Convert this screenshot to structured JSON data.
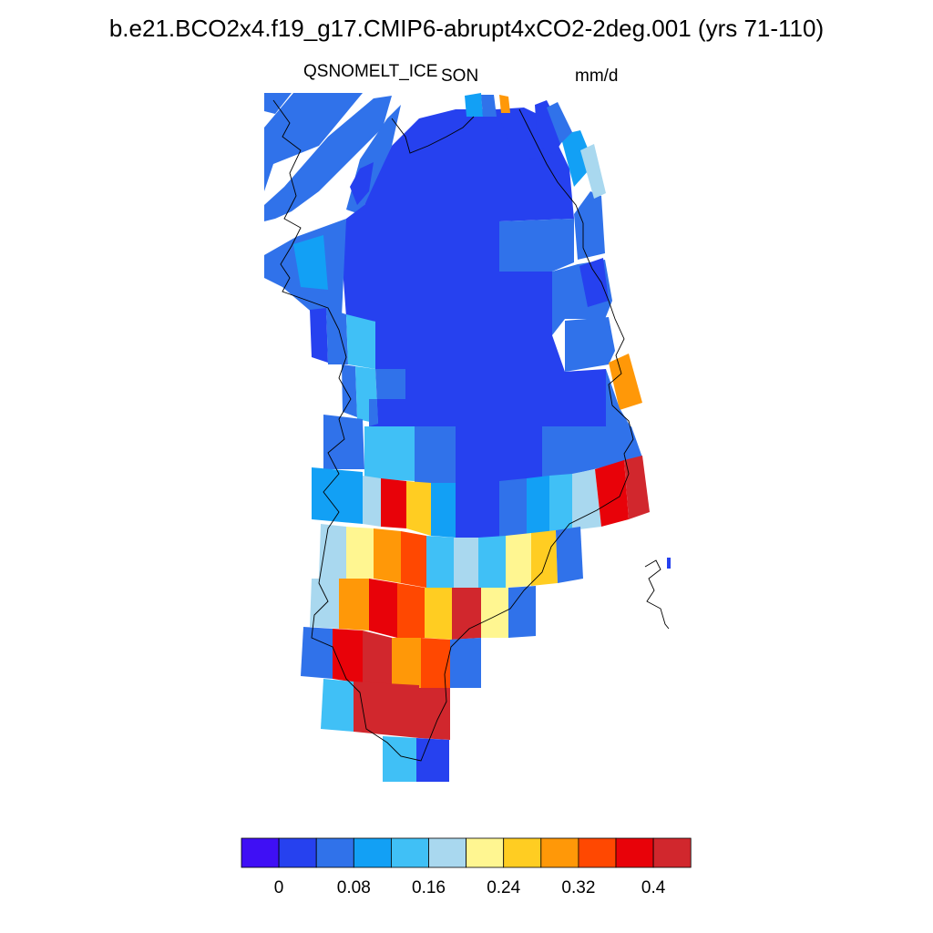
{
  "title": "b.e21.BCO2x4.f19_g17.CMIP6-abrupt4xCO2-2deg.001 (yrs 71-110)",
  "variable": "QSNOMELT_ICE",
  "season": "SON",
  "units": "mm/d",
  "colorbar": {
    "colors": [
      "#3f0ff5",
      "#2641ef",
      "#3072ea",
      "#12a0f5",
      "#40c0f6",
      "#a9d8ef",
      "#fff691",
      "#ffcd22",
      "#ff9808",
      "#ff4801",
      "#e80209",
      "#d1272d"
    ],
    "tick_labels": [
      "0",
      "0.08",
      "0.16",
      "0.24",
      "0.32",
      "0.4"
    ]
  }
}
